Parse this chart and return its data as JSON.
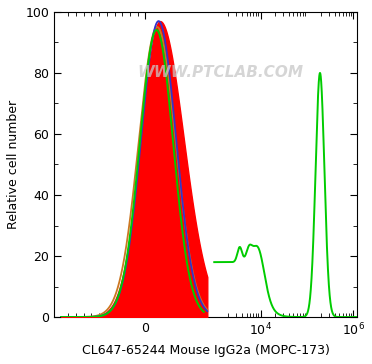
{
  "title": "",
  "xlabel": "CL647-65244 Mouse IgG2a (MOPC-173)",
  "ylabel": "Relative cell number",
  "watermark": "WWW.PTCLAB.COM",
  "ylim": [
    0,
    100
  ],
  "background_color": "#ffffff",
  "colors": {
    "red_fill": "#ff0000",
    "blue_line": "#3333cc",
    "orange_line": "#cc7722",
    "green_line": "#00cc00"
  },
  "figsize": [
    3.72,
    3.64
  ],
  "dpi": 100
}
